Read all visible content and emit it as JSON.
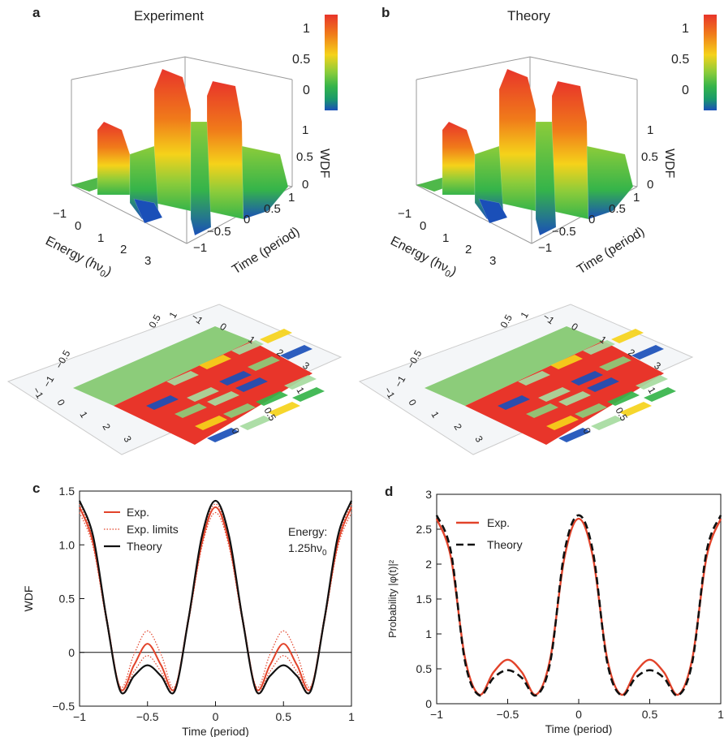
{
  "panels": {
    "a": {
      "letter": "a",
      "title": "Experiment"
    },
    "b": {
      "letter": "b",
      "title": "Theory"
    },
    "c": {
      "letter": "c"
    },
    "d": {
      "letter": "d"
    }
  },
  "colorbar": {
    "ticks": [
      "1",
      "0.5",
      "0"
    ],
    "colors": [
      "#e8352a",
      "#f07a1a",
      "#f5d21a",
      "#8ccc3a",
      "#35b44a",
      "#1a9a6a",
      "#1a4fb8"
    ]
  },
  "surface3d": {
    "energy_label": "Energy (hν",
    "energy_sub": "0",
    "energy_close": ")",
    "time_label": "Time (period)",
    "wdf_label": "WDF",
    "energy_ticks": [
      "−1",
      "0",
      "1",
      "2",
      "3"
    ],
    "time_ticks": [
      "−1",
      "−0.5",
      "0",
      "0.5",
      "1"
    ],
    "wdf_ticks": [
      "1",
      "0.5",
      "0"
    ]
  },
  "heatmap": {
    "a_ticks_left": [
      "−1",
      "−0.5",
      "0.5",
      "1"
    ],
    "a_ticks_top": [
      "−1",
      "0",
      "1",
      "2",
      "3"
    ],
    "a_ticks_bottom": [
      "−1",
      "0",
      "1",
      "2",
      "3"
    ],
    "a_ticks_right": [
      "1",
      "0.5",
      "0"
    ],
    "b_ticks_left": [
      "−1",
      "−0.5",
      "0.5",
      "1"
    ],
    "b_ticks_top": [
      "−1",
      "0",
      "1",
      "2",
      "3"
    ],
    "b_ticks_bottom": [
      "−1",
      "0",
      "1",
      "2",
      "3"
    ],
    "b_ticks_right": [
      "1",
      "0.5",
      "0"
    ]
  },
  "chart_data": [
    {
      "id": "c",
      "type": "line",
      "xlabel": "Time (period)",
      "ylabel": "WDF",
      "xlim": [
        -1,
        1
      ],
      "ylim": [
        -0.5,
        1.5
      ],
      "xticks": [
        "−1",
        "−0.5",
        "0",
        "0.5",
        "1"
      ],
      "yticks": [
        "−0.5",
        "0",
        "0.5",
        "1.0",
        "1.5"
      ],
      "annotation_line1": "Energy:",
      "annotation_line2": "1.25hν",
      "annotation_sub": "0",
      "legend": [
        "Exp.",
        "Exp. limits",
        "Theory"
      ],
      "colors": {
        "exp": "#e2432a",
        "theory": "#111111"
      },
      "series": [
        {
          "name": "Exp.",
          "style": "solid",
          "x": [
            -1,
            -0.9,
            -0.8,
            -0.7,
            -0.6,
            -0.5,
            -0.4,
            -0.3,
            -0.2,
            -0.1,
            0,
            0.1,
            0.2,
            0.3,
            0.4,
            0.5,
            0.6,
            0.7,
            0.8,
            0.9,
            1
          ],
          "y": [
            1.35,
            1.02,
            0.3,
            -0.34,
            -0.12,
            0.08,
            -0.12,
            -0.34,
            0.3,
            1.02,
            1.35,
            1.02,
            0.3,
            -0.34,
            -0.12,
            0.08,
            -0.12,
            -0.34,
            0.3,
            1.02,
            1.35
          ]
        },
        {
          "name": "Exp. limits upper",
          "style": "dotted",
          "x": [
            -1,
            -0.9,
            -0.8,
            -0.7,
            -0.6,
            -0.5,
            -0.4,
            -0.3,
            -0.2,
            -0.1,
            0,
            0.1,
            0.2,
            0.3,
            0.4,
            0.5,
            0.6,
            0.7,
            0.8,
            0.9,
            1
          ],
          "y": [
            1.38,
            1.05,
            0.33,
            -0.32,
            -0.02,
            0.2,
            -0.02,
            -0.32,
            0.33,
            1.05,
            1.38,
            1.05,
            0.33,
            -0.32,
            -0.02,
            0.2,
            -0.02,
            -0.32,
            0.33,
            1.05,
            1.38
          ]
        },
        {
          "name": "Exp. limits lower",
          "style": "dotted",
          "x": [
            -1,
            -0.9,
            -0.8,
            -0.7,
            -0.6,
            -0.5,
            -0.4,
            -0.3,
            -0.2,
            -0.1,
            0,
            0.1,
            0.2,
            0.3,
            0.4,
            0.5,
            0.6,
            0.7,
            0.8,
            0.9,
            1
          ],
          "y": [
            1.3,
            0.98,
            0.27,
            -0.36,
            -0.18,
            -0.03,
            -0.18,
            -0.36,
            0.27,
            0.98,
            1.3,
            0.98,
            0.27,
            -0.36,
            -0.18,
            -0.03,
            -0.18,
            -0.36,
            0.27,
            0.98,
            1.3
          ]
        },
        {
          "name": "Theory",
          "style": "solid",
          "x": [
            -1,
            -0.9,
            -0.8,
            -0.7,
            -0.6,
            -0.5,
            -0.4,
            -0.3,
            -0.2,
            -0.1,
            0,
            0.1,
            0.2,
            0.3,
            0.4,
            0.5,
            0.6,
            0.7,
            0.8,
            0.9,
            1
          ],
          "y": [
            1.41,
            1.08,
            0.3,
            -0.36,
            -0.22,
            -0.12,
            -0.22,
            -0.36,
            0.3,
            1.08,
            1.41,
            1.08,
            0.3,
            -0.36,
            -0.22,
            -0.12,
            -0.22,
            -0.36,
            0.3,
            1.08,
            1.41
          ]
        }
      ]
    },
    {
      "id": "d",
      "type": "line",
      "xlabel": "Time (period)",
      "ylabel": "Probability |φ(t)|²",
      "xlim": [
        -1,
        1
      ],
      "ylim": [
        0,
        3
      ],
      "xticks": [
        "−1",
        "−0.5",
        "0",
        "0.5",
        "1"
      ],
      "yticks": [
        "0",
        "0.5",
        "1",
        "1.5",
        "2",
        "2.5",
        "3"
      ],
      "legend": [
        "Exp.",
        "Theory"
      ],
      "colors": {
        "exp": "#e2432a",
        "theory": "#111111"
      },
      "series": [
        {
          "name": "Exp.",
          "style": "solid",
          "x": [
            -1,
            -0.9,
            -0.8,
            -0.7,
            -0.6,
            -0.5,
            -0.4,
            -0.3,
            -0.2,
            -0.1,
            0,
            0.1,
            0.2,
            0.3,
            0.4,
            0.5,
            0.6,
            0.7,
            0.8,
            0.9,
            1
          ],
          "y": [
            2.65,
            2.1,
            0.65,
            0.13,
            0.45,
            0.63,
            0.45,
            0.13,
            0.65,
            2.1,
            2.65,
            2.1,
            0.65,
            0.13,
            0.45,
            0.63,
            0.45,
            0.13,
            0.65,
            2.1,
            2.65
          ]
        },
        {
          "name": "Theory",
          "style": "dashed",
          "x": [
            -1,
            -0.9,
            -0.8,
            -0.7,
            -0.6,
            -0.5,
            -0.4,
            -0.3,
            -0.2,
            -0.1,
            0,
            0.1,
            0.2,
            0.3,
            0.4,
            0.5,
            0.6,
            0.7,
            0.8,
            0.9,
            1
          ],
          "y": [
            2.7,
            2.18,
            0.6,
            0.12,
            0.37,
            0.48,
            0.37,
            0.12,
            0.6,
            2.18,
            2.7,
            2.18,
            0.6,
            0.12,
            0.37,
            0.48,
            0.37,
            0.12,
            0.6,
            2.18,
            2.7
          ]
        }
      ]
    }
  ]
}
